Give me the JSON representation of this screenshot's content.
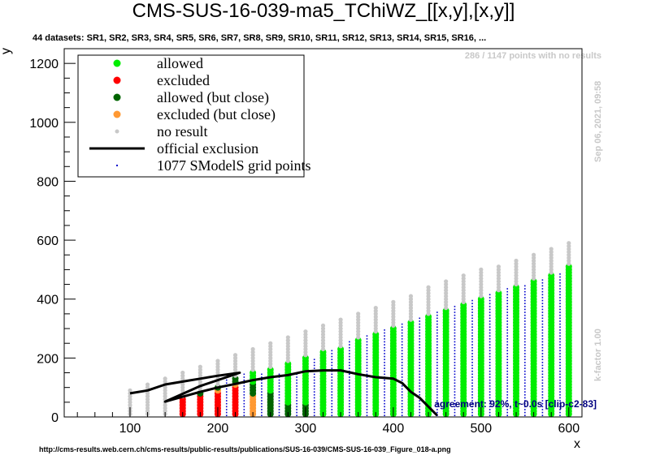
{
  "header": {
    "title": "CMS-SUS-16-039-ma5_TChiWZ_[[x,y],[x,y]]",
    "subtitle": "44 datasets: SR1, SR2, SR3, SR4, SR5, SR6, SR7, SR8, SR9, SR10, SR11, SR12, SR13, SR14, SR15, SR16,  ...",
    "no_results": "286 / 1147 points with no results",
    "date": "Sep 06, 2021, 09:58",
    "kfactor": "k-factor 1.00",
    "agreement": "agreement: 92%, t~0.0s [clip-c2-83]",
    "footer": "http://cms-results.web.cern.ch/cms-results/public-results/publications/SUS-16-039/CMS-SUS-16-039_Figure_018-a.png"
  },
  "colors": {
    "allowed": "#00ee00",
    "excluded": "#ff0000",
    "allowed_close": "#006400",
    "excluded_close": "#ff9933",
    "no_result": "#c8c8c8",
    "official": "#000000",
    "grid": "#0000cc"
  },
  "legend": {
    "items": [
      {
        "label": "allowed",
        "kind": "allowed"
      },
      {
        "label": "excluded",
        "kind": "excluded"
      },
      {
        "label": "allowed (but close)",
        "kind": "allowed_close"
      },
      {
        "label": "excluded (but close)",
        "kind": "excluded_close"
      },
      {
        "label": "no result",
        "kind": "no_result"
      },
      {
        "label": "official exclusion",
        "kind": "official"
      },
      {
        "label": "1077 SModelS grid points",
        "kind": "grid"
      }
    ]
  },
  "chart_data": {
    "type": "scatter",
    "title": "CMS-SUS-16-039-ma5_TChiWZ_[[x,y],[x,y]]",
    "xlabel": "x",
    "ylabel": "y",
    "xlim": [
      25,
      615
    ],
    "ylim": [
      0,
      1250
    ],
    "xticks": [
      100,
      200,
      300,
      400,
      500,
      600
    ],
    "yticks": [
      0,
      200,
      400,
      600,
      800,
      1000,
      1200
    ],
    "legend_position": "top-left",
    "grid": false,
    "columns": [
      {
        "x": 100,
        "ymin": 10,
        "ymax": 90,
        "excl_top": 0,
        "exclc_top": 0,
        "allc_top": 0,
        "allowed_top": 0
      },
      {
        "x": 120,
        "ymin": 10,
        "ymax": 110,
        "excl_top": 0,
        "exclc_top": 0,
        "allc_top": 0,
        "allowed_top": 0
      },
      {
        "x": 140,
        "ymin": 10,
        "ymax": 130,
        "excl_top": 0,
        "exclc_top": 0,
        "allc_top": 0,
        "allowed_top": 0
      },
      {
        "x": 160,
        "ymin": 10,
        "ymax": 150,
        "excl_top": 60,
        "exclc_top": 0,
        "allc_top": 0,
        "allowed_top": 0
      },
      {
        "x": 180,
        "ymin": 10,
        "ymax": 170,
        "excl_top": 70,
        "exclc_top": 0,
        "allc_top": 80,
        "allowed_top": 0
      },
      {
        "x": 200,
        "ymin": 10,
        "ymax": 190,
        "excl_top": 80,
        "exclc_top": 90,
        "allc_top": 100,
        "allowed_top": 0
      },
      {
        "x": 220,
        "ymin": 10,
        "ymax": 210,
        "excl_top": 100,
        "exclc_top": 110,
        "allc_top": 130,
        "allowed_top": 0
      },
      {
        "x": 240,
        "ymin": 10,
        "ymax": 230,
        "excl_top": 0,
        "exclc_top": 70,
        "allc_top": 110,
        "allowed_top": 150
      },
      {
        "x": 260,
        "ymin": 10,
        "ymax": 250,
        "excl_top": 0,
        "exclc_top": 0,
        "allc_top": 80,
        "allowed_top": 160
      },
      {
        "x": 280,
        "ymin": 10,
        "ymax": 270,
        "excl_top": 0,
        "exclc_top": 0,
        "allc_top": 40,
        "allowed_top": 180
      },
      {
        "x": 300,
        "ymin": 10,
        "ymax": 290,
        "excl_top": 0,
        "exclc_top": 0,
        "allc_top": 40,
        "allowed_top": 200
      },
      {
        "x": 320,
        "ymin": 10,
        "ymax": 310,
        "excl_top": 0,
        "exclc_top": 0,
        "allc_top": 0,
        "allowed_top": 220
      },
      {
        "x": 340,
        "ymin": 10,
        "ymax": 330,
        "excl_top": 0,
        "exclc_top": 0,
        "allc_top": 0,
        "allowed_top": 235
      },
      {
        "x": 360,
        "ymin": 10,
        "ymax": 350,
        "excl_top": 0,
        "exclc_top": 0,
        "allc_top": 0,
        "allowed_top": 260
      },
      {
        "x": 380,
        "ymin": 10,
        "ymax": 370,
        "excl_top": 0,
        "exclc_top": 0,
        "allc_top": 0,
        "allowed_top": 280
      },
      {
        "x": 400,
        "ymin": 10,
        "ymax": 390,
        "excl_top": 0,
        "exclc_top": 0,
        "allc_top": 0,
        "allowed_top": 300
      },
      {
        "x": 420,
        "ymin": 10,
        "ymax": 410,
        "excl_top": 0,
        "exclc_top": 0,
        "allc_top": 0,
        "allowed_top": 320
      },
      {
        "x": 440,
        "ymin": 10,
        "ymax": 440,
        "excl_top": 0,
        "exclc_top": 0,
        "allc_top": 0,
        "allowed_top": 340
      },
      {
        "x": 460,
        "ymin": 10,
        "ymax": 460,
        "excl_top": 0,
        "exclc_top": 0,
        "allc_top": 0,
        "allowed_top": 360
      },
      {
        "x": 480,
        "ymin": 10,
        "ymax": 480,
        "excl_top": 0,
        "exclc_top": 0,
        "allc_top": 0,
        "allowed_top": 380
      },
      {
        "x": 500,
        "ymin": 10,
        "ymax": 500,
        "excl_top": 0,
        "exclc_top": 0,
        "allc_top": 0,
        "allowed_top": 400
      },
      {
        "x": 520,
        "ymin": 10,
        "ymax": 510,
        "excl_top": 0,
        "exclc_top": 0,
        "allc_top": 0,
        "allowed_top": 420
      },
      {
        "x": 540,
        "ymin": 10,
        "ymax": 530,
        "excl_top": 0,
        "exclc_top": 0,
        "allc_top": 0,
        "allowed_top": 445
      },
      {
        "x": 560,
        "ymin": 10,
        "ymax": 550,
        "excl_top": 0,
        "exclc_top": 0,
        "allc_top": 0,
        "allowed_top": 460
      },
      {
        "x": 580,
        "ymin": 10,
        "ymax": 570,
        "excl_top": 0,
        "exclc_top": 0,
        "allc_top": 0,
        "allowed_top": 480
      },
      {
        "x": 600,
        "ymin": 10,
        "ymax": 590,
        "excl_top": 0,
        "exclc_top": 0,
        "allc_top": 0,
        "allowed_top": 510
      }
    ],
    "grid_columns": [
      {
        "x": 210,
        "ymin": 5,
        "ymax": 130
      },
      {
        "x": 230,
        "ymin": 5,
        "ymax": 150
      },
      {
        "x": 250,
        "ymin": 5,
        "ymax": 150
      },
      {
        "x": 270,
        "ymin": 5,
        "ymax": 150
      },
      {
        "x": 290,
        "ymin": 5,
        "ymax": 150
      },
      {
        "x": 310,
        "ymin": 5,
        "ymax": 200
      },
      {
        "x": 330,
        "ymin": 5,
        "ymax": 230
      },
      {
        "x": 350,
        "ymin": 5,
        "ymax": 260
      },
      {
        "x": 370,
        "ymin": 5,
        "ymax": 280
      },
      {
        "x": 390,
        "ymin": 5,
        "ymax": 300
      },
      {
        "x": 410,
        "ymin": 5,
        "ymax": 320
      },
      {
        "x": 430,
        "ymin": 5,
        "ymax": 340
      },
      {
        "x": 450,
        "ymin": 5,
        "ymax": 360
      },
      {
        "x": 470,
        "ymin": 5,
        "ymax": 380
      },
      {
        "x": 490,
        "ymin": 5,
        "ymax": 400
      },
      {
        "x": 510,
        "ymin": 5,
        "ymax": 420
      },
      {
        "x": 530,
        "ymin": 5,
        "ymax": 440
      },
      {
        "x": 550,
        "ymin": 5,
        "ymax": 450
      },
      {
        "x": 570,
        "ymin": 5,
        "ymax": 470
      },
      {
        "x": 590,
        "ymin": 5,
        "ymax": 490
      }
    ],
    "official_exclusion": [
      [
        100,
        80
      ],
      [
        120,
        90
      ],
      [
        140,
        110
      ],
      [
        160,
        120
      ],
      [
        180,
        130
      ],
      [
        200,
        140
      ],
      [
        225,
        150
      ],
      [
        180,
        105
      ],
      [
        140,
        52
      ],
      [
        180,
        85
      ],
      [
        200,
        100
      ],
      [
        220,
        112
      ],
      [
        240,
        125
      ],
      [
        260,
        135
      ],
      [
        280,
        142
      ],
      [
        300,
        155
      ],
      [
        320,
        158
      ],
      [
        340,
        158
      ],
      [
        360,
        145
      ],
      [
        380,
        135
      ],
      [
        400,
        130
      ],
      [
        410,
        115
      ],
      [
        420,
        85
      ],
      [
        430,
        65
      ],
      [
        440,
        35
      ],
      [
        450,
        5
      ]
    ]
  }
}
